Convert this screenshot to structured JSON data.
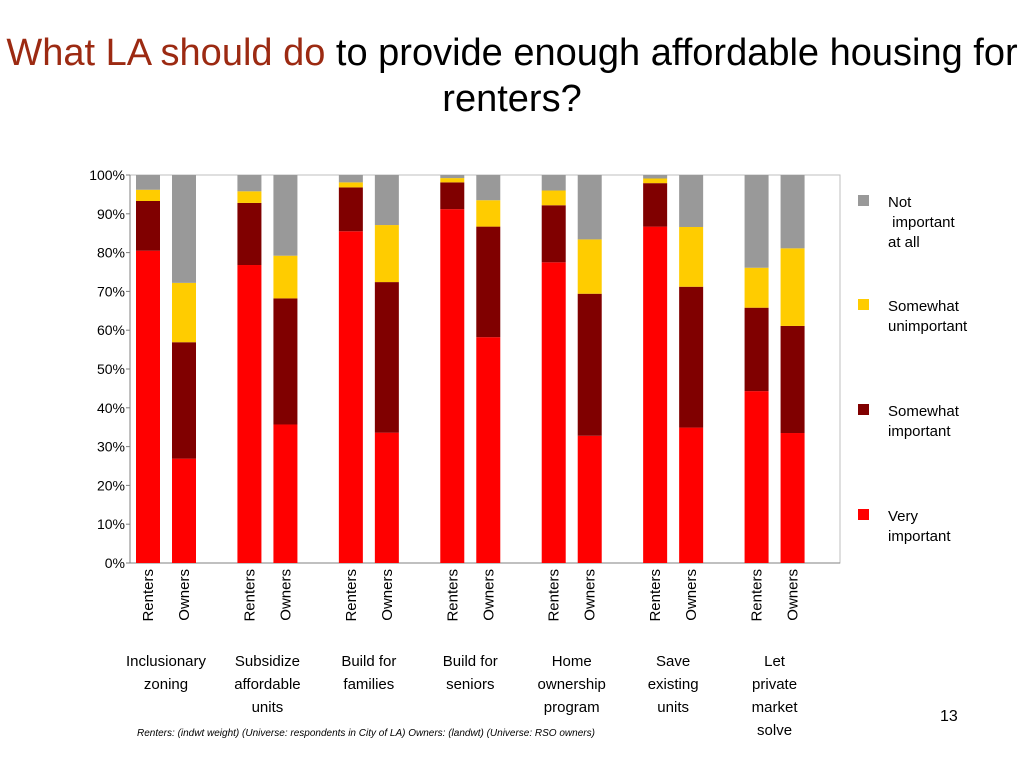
{
  "title": {
    "highlight": "What LA should do",
    "rest": "to provide enough affordable housing for renters?"
  },
  "footnote": "Renters: (indwt weight) (Universe: respondents in City of LA) Owners: (landwt) (Universe: RSO owners)",
  "page_number": "13",
  "colors": {
    "very_important": "#ff0000",
    "somewhat_important": "#800000",
    "somewhat_unimportant": "#ffcc00",
    "not_important": "#999999"
  },
  "chart_data": {
    "type": "bar",
    "stacked": true,
    "ylim": [
      0,
      100
    ],
    "yticks": [
      "0%",
      "10%",
      "20%",
      "30%",
      "40%",
      "50%",
      "60%",
      "70%",
      "80%",
      "90%",
      "100%"
    ],
    "groups": [
      "Inclusionary zoning",
      "Subsidize affordable units",
      "Build for families",
      "Build for seniors",
      "Home ownership program",
      "Save existing units",
      "Let private market solve"
    ],
    "group_label_lines": [
      [
        "Inclusionary",
        "zoning"
      ],
      [
        "Subsidize",
        "affordable",
        "units"
      ],
      [
        "Build for",
        "families"
      ],
      [
        "Build for",
        "seniors"
      ],
      [
        "Home",
        "ownership",
        "program"
      ],
      [
        "Save",
        "existing",
        "units"
      ],
      [
        "Let",
        "private",
        "market",
        "solve"
      ]
    ],
    "bar_labels": [
      "Renters",
      "Owners"
    ],
    "legend": [
      {
        "key": "not_important",
        "lines": [
          "Not",
          " important",
          "at all"
        ]
      },
      {
        "key": "somewhat_unimportant",
        "lines": [
          "Somewhat",
          "unimportant"
        ]
      },
      {
        "key": "somewhat_important",
        "lines": [
          "Somewhat",
          "important"
        ]
      },
      {
        "key": "very_important",
        "lines": [
          "Very",
          "important"
        ]
      }
    ],
    "series": [
      {
        "name": "Very important",
        "key": "very_important",
        "renters": [
          80.5,
          76.8,
          85.5,
          91.2,
          77.5,
          86.7,
          44.3
        ],
        "owners": [
          26.9,
          35.7,
          33.6,
          58.2,
          32.8,
          34.9,
          33.5
        ]
      },
      {
        "name": "Somewhat important",
        "key": "somewhat_important",
        "renters": [
          12.8,
          16.0,
          11.3,
          6.9,
          14.7,
          11.2,
          21.5
        ],
        "owners": [
          30.0,
          32.5,
          38.8,
          28.5,
          36.6,
          36.3,
          27.6
        ]
      },
      {
        "name": "Somewhat unimportant",
        "key": "somewhat_unimportant",
        "renters": [
          2.9,
          3.0,
          1.3,
          1.1,
          3.8,
          1.2,
          10.3
        ],
        "owners": [
          15.3,
          11.0,
          14.7,
          6.8,
          14.0,
          15.4,
          20.0
        ]
      },
      {
        "name": "Not important at all",
        "key": "not_important",
        "renters": [
          3.8,
          4.2,
          1.9,
          0.8,
          4.0,
          0.9,
          23.9
        ],
        "owners": [
          27.8,
          20.8,
          12.9,
          6.5,
          16.6,
          13.4,
          18.9
        ]
      }
    ]
  }
}
